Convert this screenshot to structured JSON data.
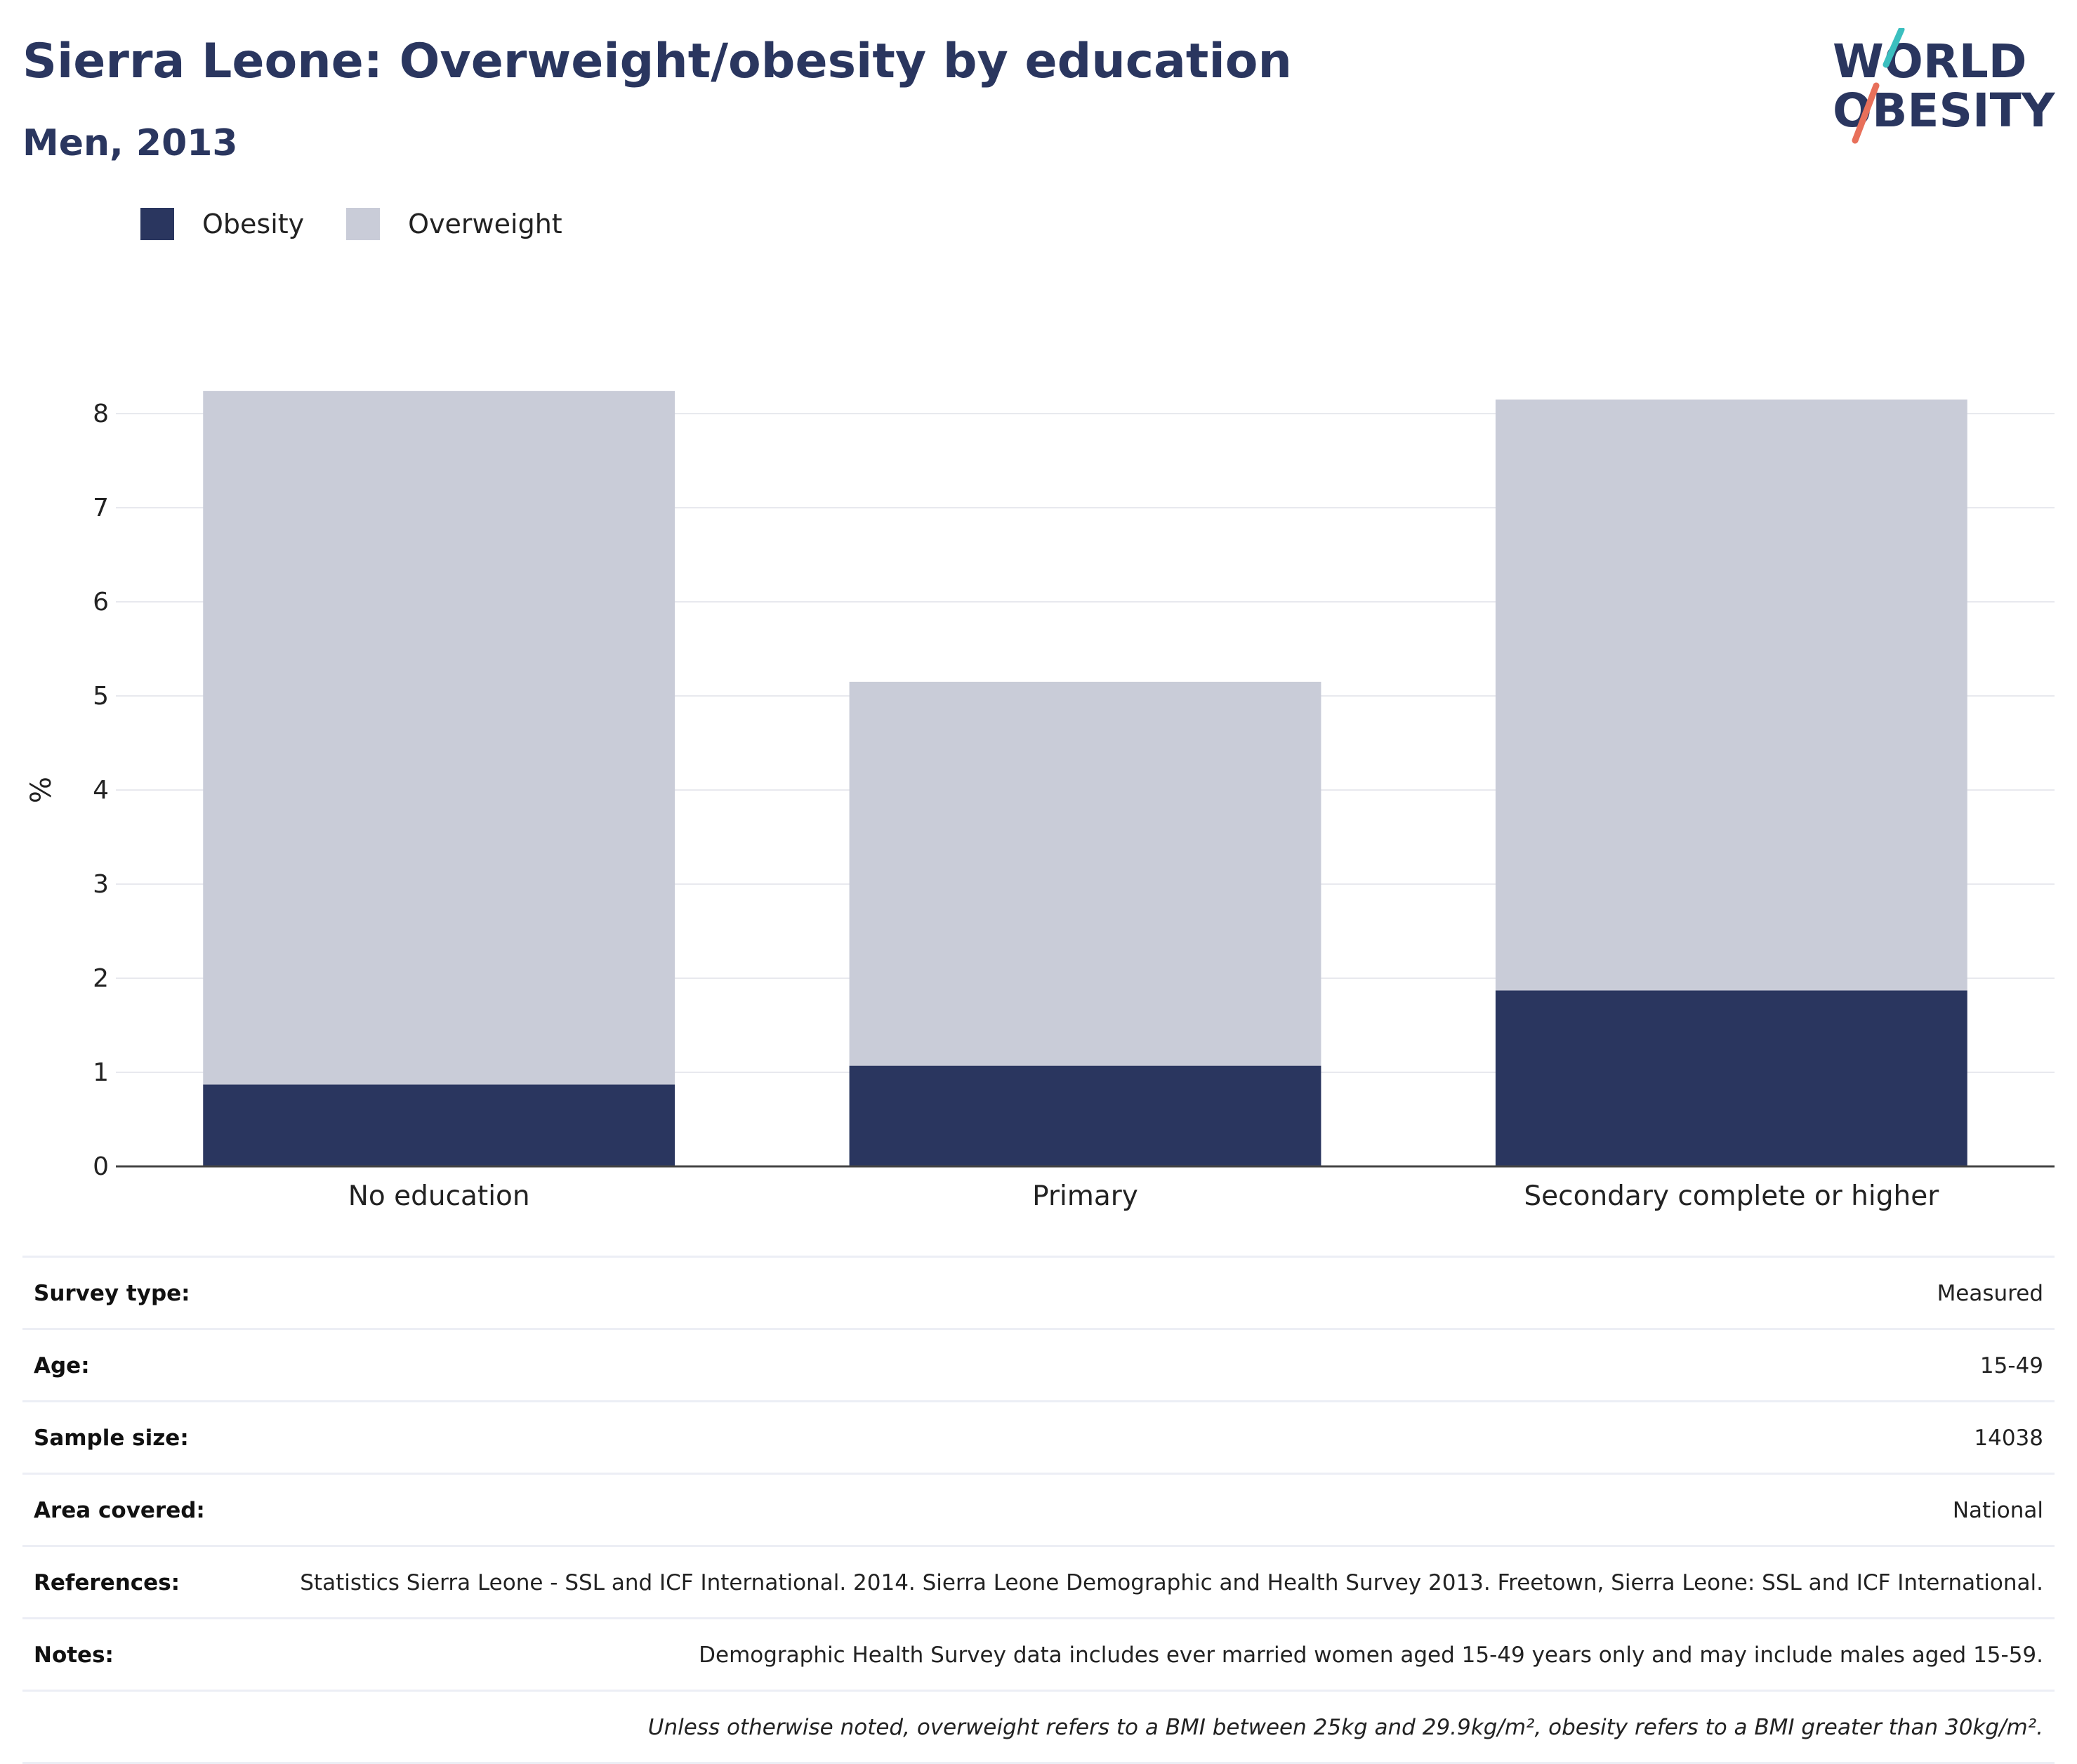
{
  "header": {
    "title": "Sierra Leone: Overweight/obesity by education",
    "subtitle": "Men, 2013"
  },
  "logo": {
    "line1": "WORLD",
    "line2": "OBESITY",
    "accent_colors": [
      "#3bbfbf",
      "#e8705a"
    ]
  },
  "legend": [
    {
      "label": "Obesity",
      "color": "#2a365f"
    },
    {
      "label": "Overweight",
      "color": "#c9ccd8"
    }
  ],
  "chart_data": {
    "type": "bar",
    "stacked": true,
    "categories": [
      "No education",
      "Primary",
      "Secondary complete or higher"
    ],
    "series": [
      {
        "name": "Obesity",
        "color": "#2a365f",
        "values": [
          0.87,
          1.07,
          1.87
        ]
      },
      {
        "name": "Overweight",
        "color": "#c9ccd8",
        "values": [
          7.37,
          4.08,
          6.28
        ]
      }
    ],
    "ylabel": "%",
    "xlabel": "",
    "ylim": [
      0,
      8.5
    ],
    "yticks": [
      0,
      1,
      2,
      3,
      4,
      5,
      6,
      7,
      8
    ],
    "grid": true,
    "legend_position": "top-left"
  },
  "info": [
    {
      "key": "Survey type:",
      "value": "Measured"
    },
    {
      "key": "Age:",
      "value": "15-49"
    },
    {
      "key": "Sample size:",
      "value": "14038"
    },
    {
      "key": "Area covered:",
      "value": "National"
    },
    {
      "key": "References:",
      "value": "Statistics Sierra Leone - SSL and ICF International. 2014. Sierra Leone Demographic and Health Survey 2013. Freetown, Sierra Leone: SSL and ICF International."
    },
    {
      "key": "Notes:",
      "value": "Demographic Health Survey data includes ever married women aged 15-49 years only and may include males aged 15-59."
    },
    {
      "key": "",
      "value": "Unless otherwise noted, overweight refers to a BMI between 25kg and 29.9kg/m², obesity refers to a BMI greater than 30kg/m²."
    }
  ]
}
